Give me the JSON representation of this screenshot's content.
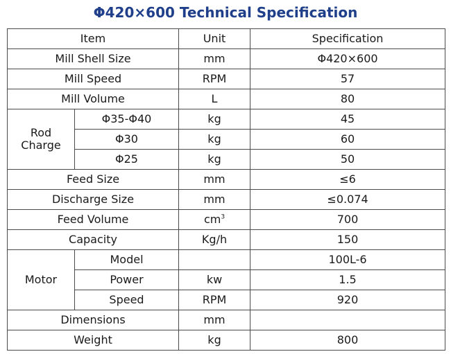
{
  "title": "Φ420×600 Technical Specification",
  "header": {
    "item": "Item",
    "unit": "Unit",
    "specification": "Specification"
  },
  "rows": {
    "mill_shell_size": {
      "item": "Mill Shell Size",
      "unit": "mm",
      "spec": "Φ420×600"
    },
    "mill_speed": {
      "item": "Mill Speed",
      "unit": "RPM",
      "spec": "57"
    },
    "mill_volume": {
      "item": "Mill Volume",
      "unit": "L",
      "spec": "80"
    },
    "rod_charge": {
      "label_line1": "Rod",
      "label_line2": "Charge",
      "items": [
        {
          "size": "Φ35-Φ40",
          "unit": "kg",
          "spec": "45"
        },
        {
          "size": "Φ30",
          "unit": "kg",
          "spec": "60"
        },
        {
          "size": "Φ25",
          "unit": "kg",
          "spec": "50"
        }
      ]
    },
    "feed_size": {
      "item": "Feed Size",
      "unit": "mm",
      "spec": "≤6"
    },
    "discharge_size": {
      "item": "Discharge Size",
      "unit": "mm",
      "spec": "≤0.074"
    },
    "feed_volume": {
      "item": "Feed Volume",
      "unit_base": "cm",
      "unit_sup": "3",
      "spec": "700"
    },
    "capacity": {
      "item": "Capacity",
      "unit": "Kg/h",
      "spec": "150"
    },
    "motor": {
      "label": "Motor",
      "items": [
        {
          "name": "Model",
          "unit": "",
          "spec": "100L-6"
        },
        {
          "name": "Power",
          "unit": "kw",
          "spec": "1.5"
        },
        {
          "name": "Speed",
          "unit": "RPM",
          "spec": "920"
        }
      ]
    },
    "dimensions": {
      "item": "Dimensions",
      "unit": "mm",
      "spec": ""
    },
    "weight": {
      "item": "Weight",
      "unit": "kg",
      "spec": "800"
    }
  }
}
